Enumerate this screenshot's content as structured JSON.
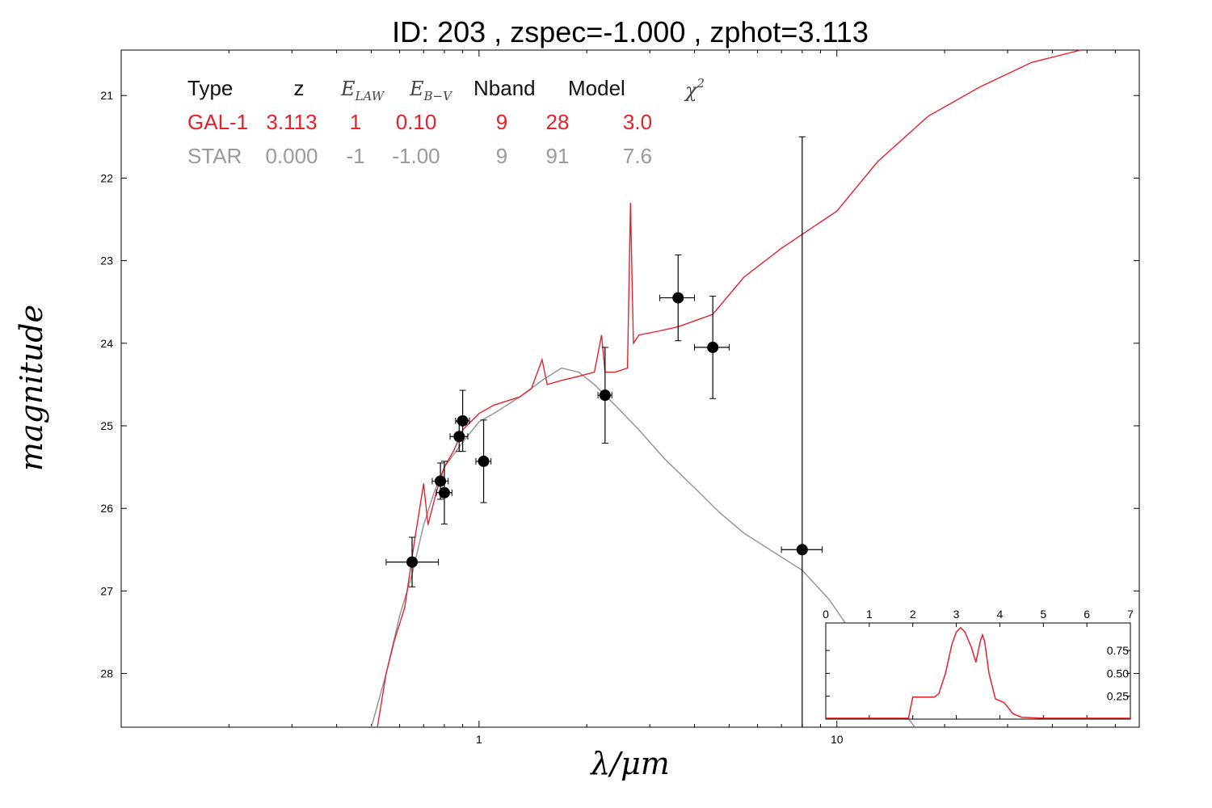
{
  "chart_data": {
    "type": "scatter",
    "title": "ID:  203   , zspec=-1.000 , zphot=3.113",
    "xlabel": "λ/μm",
    "ylabel": "magnitude",
    "x_scale": "log",
    "y_inverted": true,
    "xlim": [
      0.1,
      70
    ],
    "ylim": [
      28.65,
      20.45
    ],
    "x_ticks": [
      {
        "value": 1,
        "label": "1"
      },
      {
        "value": 10,
        "label": "10"
      }
    ],
    "y_ticks": [
      21,
      22,
      23,
      24,
      25,
      26,
      27,
      28
    ],
    "colors": {
      "galaxy": "#e8202a",
      "star": "#909090",
      "points": "#000000"
    },
    "table": {
      "header": [
        "Type",
        "z",
        "E_LAW",
        "E_B-V",
        "Nband",
        "Model",
        "χ2"
      ],
      "rows": [
        {
          "cells": [
            "GAL-1",
            "3.113",
            "1",
            "0.10",
            "9",
            "28",
            "3.0"
          ],
          "color": "#e8202a"
        },
        {
          "cells": [
            "STAR",
            "0.000",
            "-1",
            "-1.00",
            "9",
            "91",
            "7.6"
          ],
          "color": "#9a9a9a"
        }
      ]
    },
    "photometry": [
      {
        "x": 0.65,
        "y": 26.65,
        "xlo": 0.55,
        "xhi": 0.77,
        "yerr": 0.3
      },
      {
        "x": 0.78,
        "y": 25.67,
        "xlo": 0.74,
        "xhi": 0.82,
        "yerr": 0.22
      },
      {
        "x": 0.8,
        "y": 25.81,
        "xlo": 0.76,
        "xhi": 0.84,
        "yerr": 0.38
      },
      {
        "x": 0.88,
        "y": 25.13,
        "xlo": 0.83,
        "xhi": 0.93,
        "yerr": 0.18
      },
      {
        "x": 0.9,
        "y": 24.94,
        "xlo": 0.86,
        "xhi": 0.94,
        "yerr": 0.37
      },
      {
        "x": 1.03,
        "y": 25.43,
        "xlo": 0.98,
        "xhi": 1.08,
        "yerr": 0.5
      },
      {
        "x": 2.25,
        "y": 24.63,
        "xlo": 2.15,
        "xhi": 2.35,
        "yerr": 0.58
      },
      {
        "x": 3.6,
        "y": 23.45,
        "xlo": 3.2,
        "xhi": 4.0,
        "yerr": 0.52
      },
      {
        "x": 4.5,
        "y": 24.05,
        "xlo": 4.0,
        "xhi": 5.0,
        "yerr": 0.62
      },
      {
        "x": 8.0,
        "y": 26.5,
        "xlo": 7.0,
        "xhi": 9.1,
        "yerr": 5.0
      }
    ],
    "galaxy_model": [
      [
        0.52,
        28.65
      ],
      [
        0.55,
        28.0
      ],
      [
        0.58,
        27.6
      ],
      [
        0.62,
        27.2
      ],
      [
        0.66,
        26.4
      ],
      [
        0.7,
        25.7
      ],
      [
        0.72,
        26.2
      ],
      [
        0.76,
        25.8
      ],
      [
        0.8,
        25.5
      ],
      [
        0.85,
        25.3
      ],
      [
        0.9,
        25.05
      ],
      [
        1.0,
        24.85
      ],
      [
        1.1,
        24.75
      ],
      [
        1.3,
        24.65
      ],
      [
        1.4,
        24.55
      ],
      [
        1.5,
        24.2
      ],
      [
        1.55,
        24.5
      ],
      [
        1.7,
        24.45
      ],
      [
        1.9,
        24.4
      ],
      [
        2.1,
        24.35
      ],
      [
        2.2,
        23.9
      ],
      [
        2.25,
        24.35
      ],
      [
        2.4,
        24.35
      ],
      [
        2.6,
        24.3
      ],
      [
        2.65,
        22.3
      ],
      [
        2.7,
        24.0
      ],
      [
        2.8,
        23.9
      ],
      [
        3.2,
        23.85
      ],
      [
        3.6,
        23.8
      ],
      [
        4.5,
        23.65
      ],
      [
        5.5,
        23.2
      ],
      [
        7.0,
        22.85
      ],
      [
        10.0,
        22.4
      ],
      [
        13.0,
        21.8
      ],
      [
        18.0,
        21.25
      ],
      [
        25.0,
        20.9
      ],
      [
        35.0,
        20.6
      ],
      [
        48.0,
        20.45
      ]
    ],
    "star_model": [
      [
        0.5,
        28.65
      ],
      [
        0.55,
        28.0
      ],
      [
        0.6,
        27.3
      ],
      [
        0.65,
        26.8
      ],
      [
        0.7,
        26.2
      ],
      [
        0.75,
        25.8
      ],
      [
        0.8,
        25.5
      ],
      [
        0.9,
        25.2
      ],
      [
        1.0,
        24.95
      ],
      [
        1.1,
        24.85
      ],
      [
        1.3,
        24.65
      ],
      [
        1.5,
        24.45
      ],
      [
        1.7,
        24.3
      ],
      [
        1.9,
        24.35
      ],
      [
        2.1,
        24.5
      ],
      [
        2.4,
        24.75
      ],
      [
        2.8,
        25.05
      ],
      [
        3.3,
        25.4
      ],
      [
        4.0,
        25.75
      ],
      [
        4.7,
        26.05
      ],
      [
        5.5,
        26.3
      ],
      [
        6.5,
        26.5
      ],
      [
        8.0,
        26.75
      ],
      [
        9.5,
        27.1
      ],
      [
        11.0,
        27.5
      ],
      [
        13.0,
        28.0
      ],
      [
        15.0,
        28.4
      ],
      [
        16.5,
        28.65
      ]
    ],
    "inset": {
      "xlim": [
        0,
        7
      ],
      "ylim": [
        0,
        1.05
      ],
      "x_ticks": [
        0,
        1,
        2,
        3,
        4,
        5,
        6,
        7
      ],
      "y_ticks": [
        {
          "value": 0.25,
          "label": "0.25"
        },
        {
          "value": 0.5,
          "label": "0.50"
        },
        {
          "value": 0.75,
          "label": "0.75"
        }
      ],
      "pdz": [
        [
          0,
          0.01
        ],
        [
          1.9,
          0.01
        ],
        [
          2.0,
          0.24
        ],
        [
          2.5,
          0.24
        ],
        [
          2.6,
          0.28
        ],
        [
          2.75,
          0.5
        ],
        [
          2.9,
          0.82
        ],
        [
          3.0,
          0.95
        ],
        [
          3.1,
          1.0
        ],
        [
          3.2,
          0.95
        ],
        [
          3.35,
          0.78
        ],
        [
          3.45,
          0.62
        ],
        [
          3.55,
          0.85
        ],
        [
          3.6,
          0.92
        ],
        [
          3.65,
          0.85
        ],
        [
          3.75,
          0.5
        ],
        [
          3.9,
          0.22
        ],
        [
          4.1,
          0.18
        ],
        [
          4.3,
          0.06
        ],
        [
          4.5,
          0.02
        ],
        [
          5.0,
          0.01
        ],
        [
          7.0,
          0.01
        ]
      ]
    }
  }
}
